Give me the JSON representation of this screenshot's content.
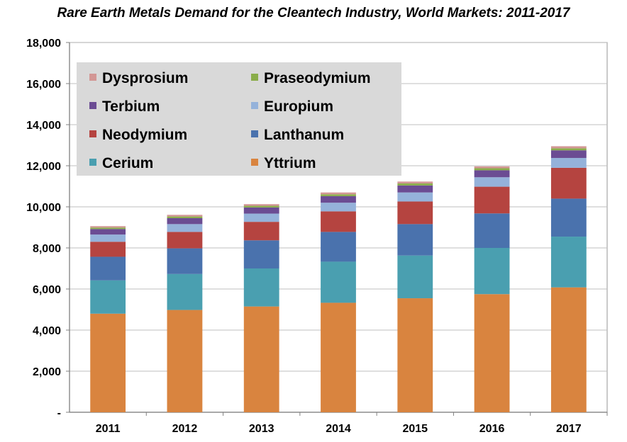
{
  "chart_data": {
    "type": "bar",
    "stacked": true,
    "title": "Rare Earth Metals Demand for the Cleantech Industry, World Markets:  2011-2017",
    "xlabel": "",
    "ylabel": "",
    "categories": [
      "2011",
      "2012",
      "2013",
      "2014",
      "2015",
      "2016",
      "2017"
    ],
    "ylim": [
      0,
      18000
    ],
    "yticks": [
      0,
      2000,
      4000,
      6000,
      8000,
      10000,
      12000,
      14000,
      16000,
      18000
    ],
    "ytick_labels": [
      "-",
      "2,000",
      "4,000",
      "6,000",
      "8,000",
      "10,000",
      "12,000",
      "14,000",
      "16,000",
      "18,000"
    ],
    "grid": true,
    "legend_position": "top-left",
    "series": [
      {
        "name": "Yttrium",
        "color": "#d9843f",
        "values": [
          4800,
          4980,
          5150,
          5330,
          5550,
          5750,
          6080
        ]
      },
      {
        "name": "Cerium",
        "color": "#4a9fb0",
        "values": [
          1620,
          1750,
          1850,
          2000,
          2080,
          2250,
          2470
        ]
      },
      {
        "name": "Lanthanum",
        "color": "#4a72ad",
        "values": [
          1150,
          1250,
          1370,
          1450,
          1530,
          1680,
          1850
        ]
      },
      {
        "name": "Neodymium",
        "color": "#b54440",
        "values": [
          730,
          800,
          900,
          1000,
          1100,
          1300,
          1500
        ]
      },
      {
        "name": "Europium",
        "color": "#95b2da",
        "values": [
          350,
          380,
          400,
          420,
          440,
          460,
          480
        ]
      },
      {
        "name": "Terbium",
        "color": "#6b4c93",
        "values": [
          270,
          290,
          300,
          320,
          340,
          340,
          370
        ]
      },
      {
        "name": "Praseodymium",
        "color": "#8aad4a",
        "values": [
          70,
          80,
          80,
          90,
          100,
          100,
          100
        ]
      },
      {
        "name": "Dysprosium",
        "color": "#d39795",
        "values": [
          70,
          80,
          80,
          90,
          90,
          90,
          100
        ]
      }
    ],
    "legend_order": [
      "Dysprosium",
      "Praseodymium",
      "Terbium",
      "Europium",
      "Neodymium",
      "Lanthanum",
      "Cerium",
      "Yttrium"
    ]
  }
}
